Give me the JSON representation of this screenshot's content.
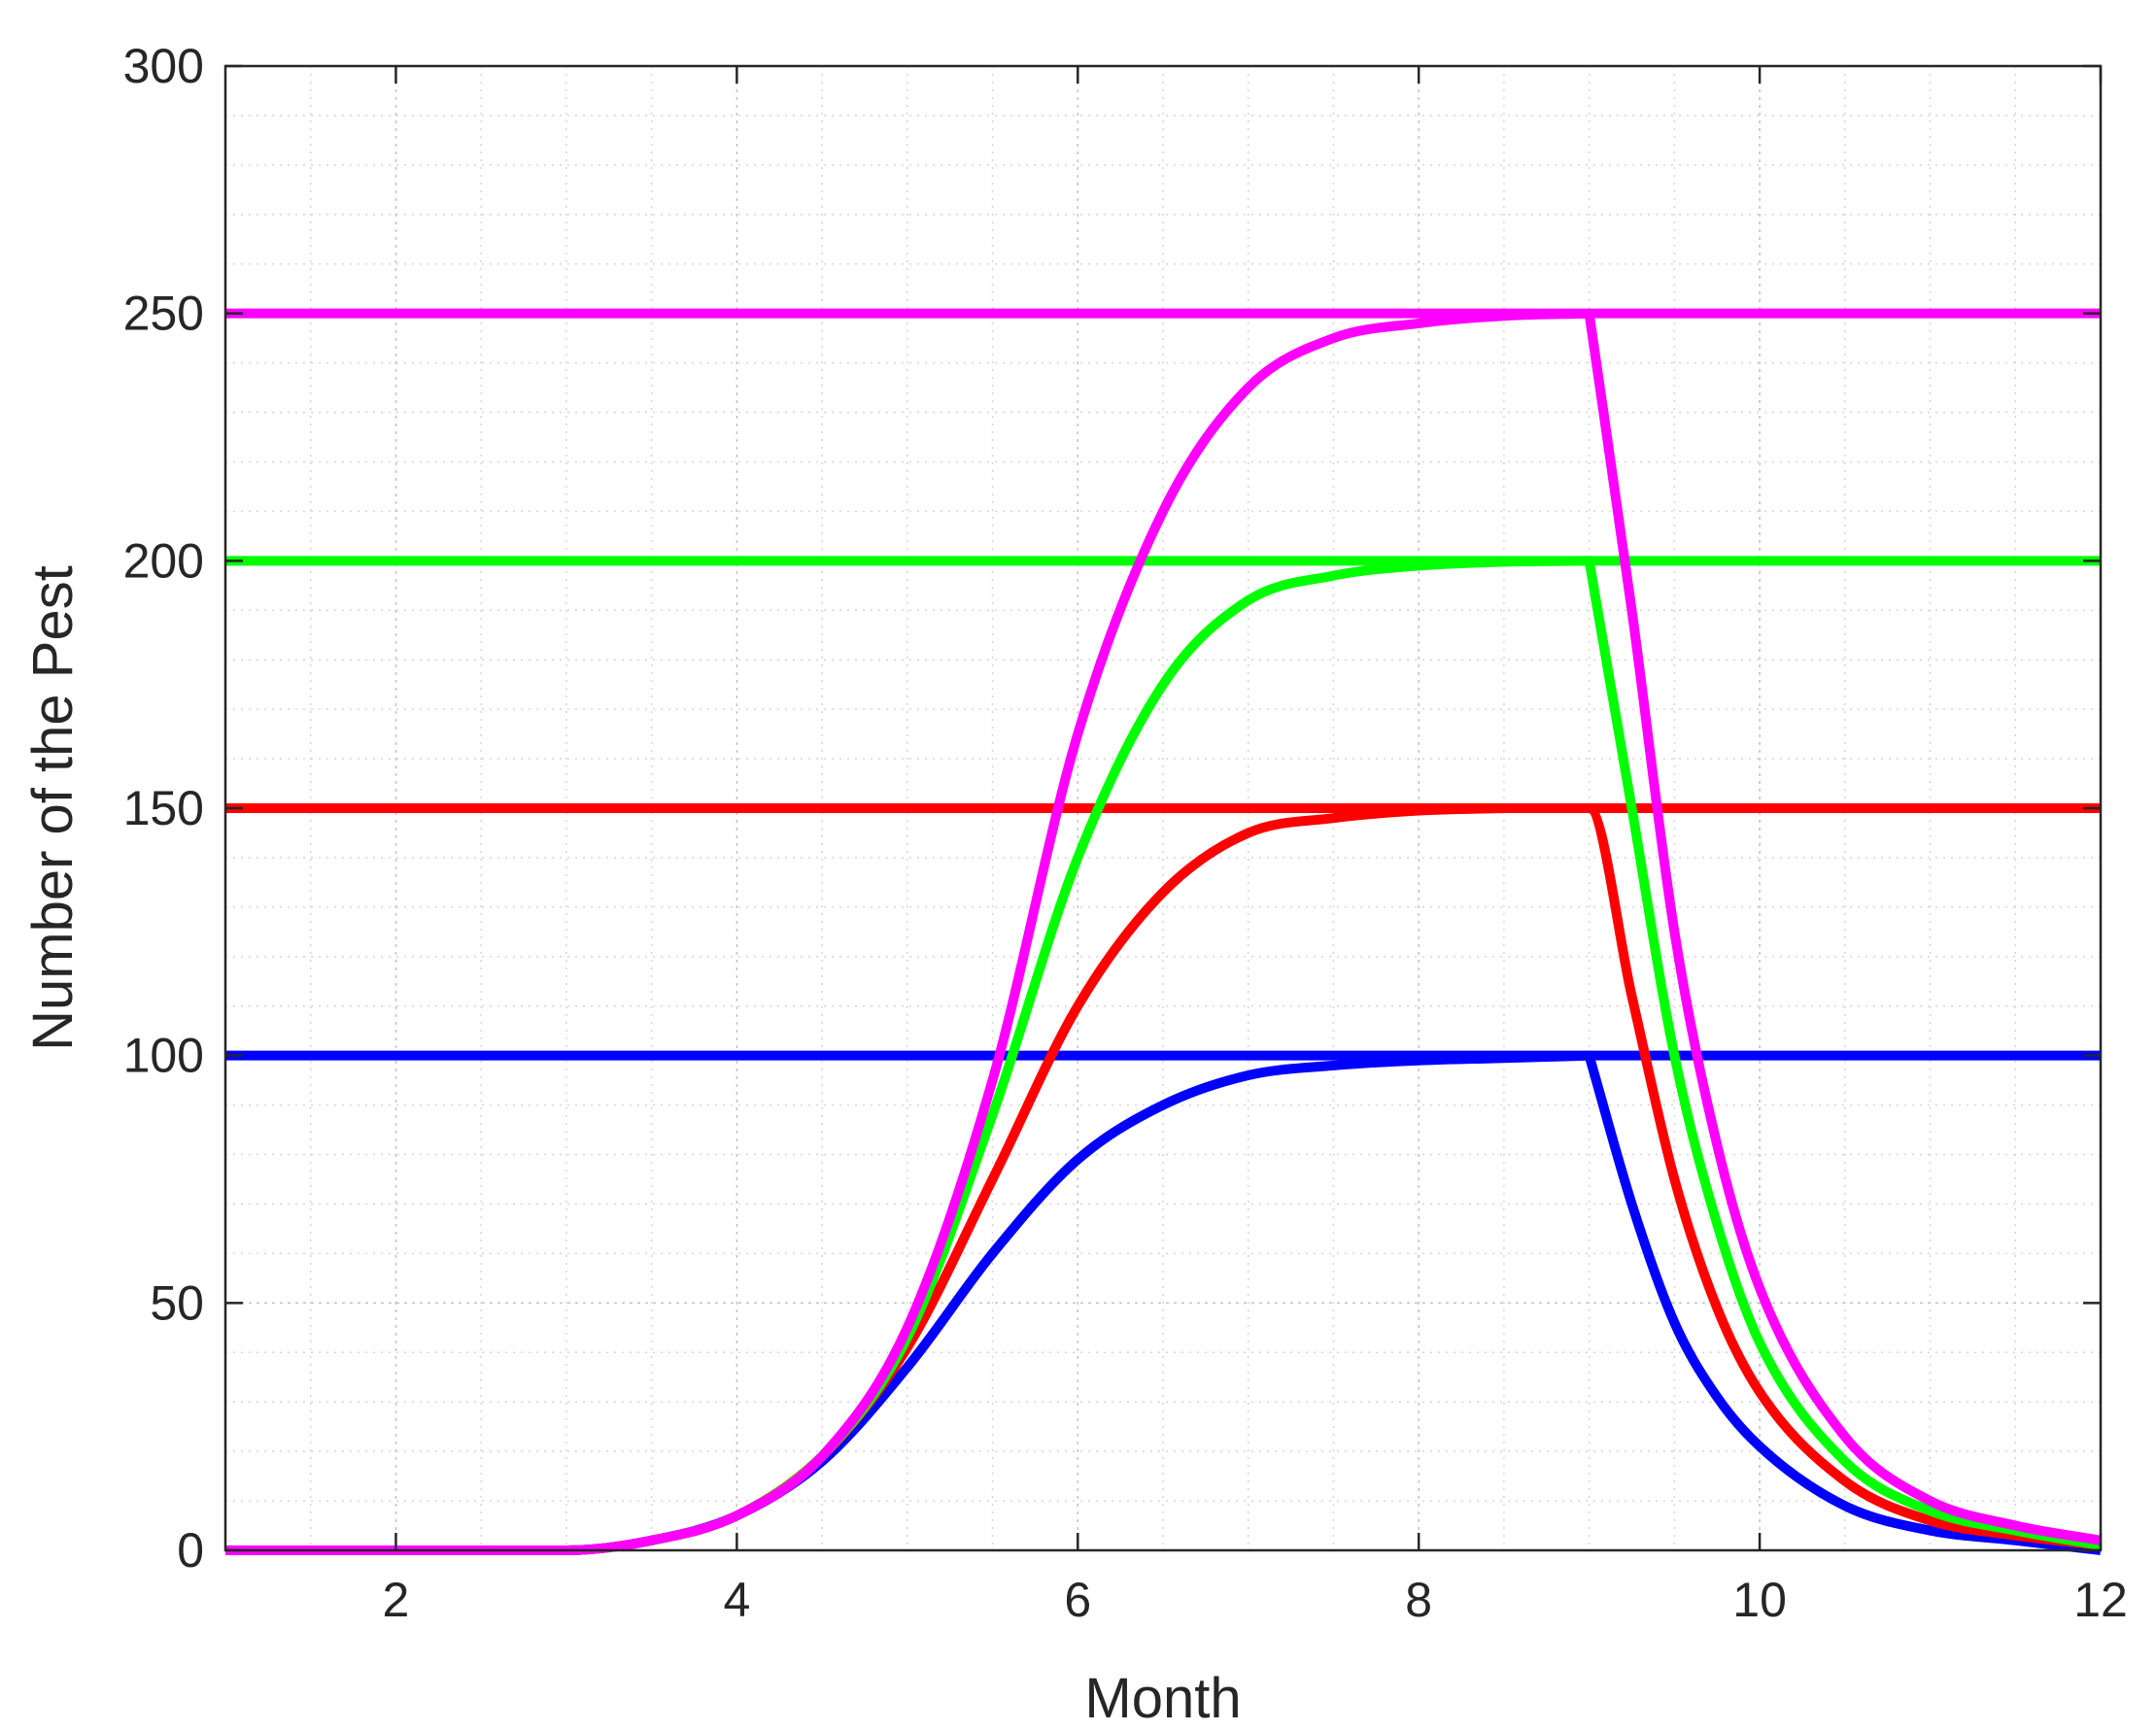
{
  "chart_data": {
    "type": "line",
    "xlabel": "Month",
    "ylabel": "Number of the Pest",
    "xlim": [
      1,
      12
    ],
    "ylim": [
      0,
      300
    ],
    "xticks": [
      2,
      4,
      6,
      8,
      10,
      12
    ],
    "yticks": [
      0,
      50,
      100,
      150,
      200,
      250,
      300
    ],
    "grid": true,
    "minor_grid": true,
    "legend": "none",
    "thresholds": [
      {
        "color": "#0000ff",
        "value": 100
      },
      {
        "color": "#ff0000",
        "value": 150
      },
      {
        "color": "#00ff00",
        "value": 200
      },
      {
        "color": "#ff00ff",
        "value": 250
      }
    ],
    "series": [
      {
        "color": "#0000ff",
        "x": [
          1,
          3,
          3.5,
          4,
          4.5,
          5,
          5.5,
          6,
          6.5,
          7,
          7.5,
          8,
          8.5,
          9,
          9.25,
          9.5,
          9.75,
          10,
          10.5,
          11,
          11.5,
          12
        ],
        "y": [
          0,
          0,
          2,
          7,
          18,
          37,
          60,
          79,
          90,
          96,
          98,
          99,
          99.5,
          100,
          70,
          46,
          31,
          21,
          9,
          4,
          2,
          0
        ]
      },
      {
        "color": "#ff0000",
        "x": [
          1,
          3,
          3.5,
          4,
          4.5,
          5,
          5.5,
          6,
          6.5,
          7,
          7.5,
          8,
          8.5,
          9,
          9.25,
          9.5,
          9.75,
          10,
          10.5,
          11,
          11.5,
          12
        ],
        "y": [
          0,
          0,
          2,
          7,
          19,
          41,
          75,
          110,
          133,
          145,
          148,
          149.5,
          150,
          150,
          112,
          75,
          49,
          32,
          14,
          6,
          3,
          1
        ]
      },
      {
        "color": "#00ff00",
        "x": [
          1,
          3,
          3.5,
          4,
          4.5,
          5,
          5.5,
          6,
          6.5,
          7,
          7.5,
          8,
          8.5,
          9,
          9.25,
          9.5,
          9.75,
          10,
          10.5,
          11,
          11.5,
          12
        ],
        "y": [
          0,
          0,
          2,
          7,
          19,
          43,
          88,
          140,
          175,
          192,
          197,
          199,
          199.8,
          200,
          150,
          100,
          66,
          42,
          18,
          8,
          4,
          1
        ]
      },
      {
        "color": "#ff00ff",
        "x": [
          1,
          3,
          3.5,
          4,
          4.5,
          5,
          5.5,
          6,
          6.5,
          7,
          7.5,
          8,
          8.5,
          9,
          9.25,
          9.5,
          9.75,
          10,
          10.5,
          11,
          11.5,
          12
        ],
        "y": [
          0,
          0,
          2,
          7,
          19,
          45,
          95,
          165,
          210,
          235,
          245,
          248,
          249.5,
          250,
          190,
          125,
          82,
          53,
          23,
          10,
          5,
          2
        ]
      }
    ]
  }
}
